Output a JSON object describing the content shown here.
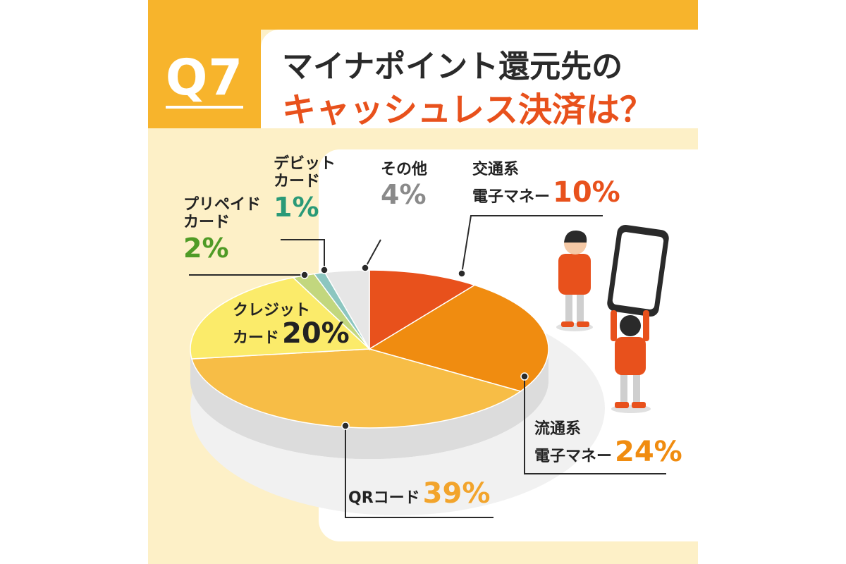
{
  "header": {
    "badge": "Q7",
    "title_line1": "マイナポイント還元先の",
    "title_line2": "キャッシュレス決済は？"
  },
  "colors": {
    "accent": "#f7b42c",
    "title_red": "#e8511c",
    "background": "#fdf0c7"
  },
  "chart_data": {
    "type": "pie",
    "title": "マイナポイント還元先のキャッシュレス決済は？",
    "unit": "%",
    "legend": "none",
    "slices": [
      {
        "label_lines": [
          "交通系",
          "電子マネー"
        ],
        "value": 10,
        "value_text": "10%",
        "color": "#e8511c",
        "text_color": "#e8511c"
      },
      {
        "label_lines": [
          "流通系",
          "電子マネー"
        ],
        "value": 24,
        "value_text": "24%",
        "color": "#f08c10",
        "text_color": "#f08c10"
      },
      {
        "label_lines": [
          "QRコード"
        ],
        "value": 39,
        "value_text": "39%",
        "color": "#f7bd46",
        "text_color": "#f2a42c"
      },
      {
        "label_lines": [
          "クレジット",
          "カード"
        ],
        "value": 20,
        "value_text": "20%",
        "color": "#fbeb6a",
        "text_color": "#222222"
      },
      {
        "label_lines": [
          "プリペイド",
          "カード"
        ],
        "value": 2,
        "value_text": "2%",
        "color": "#c2d77e",
        "text_color": "#4f9b26"
      },
      {
        "label_lines": [
          "デビット",
          "カード"
        ],
        "value": 1,
        "value_text": "1%",
        "color": "#8cc6c0",
        "text_color": "#2a9a78"
      },
      {
        "label_lines": [
          "その他"
        ],
        "value": 4,
        "value_text": "4%",
        "color": "#e6e6e6",
        "text_color": "#8a8a8a"
      }
    ]
  }
}
